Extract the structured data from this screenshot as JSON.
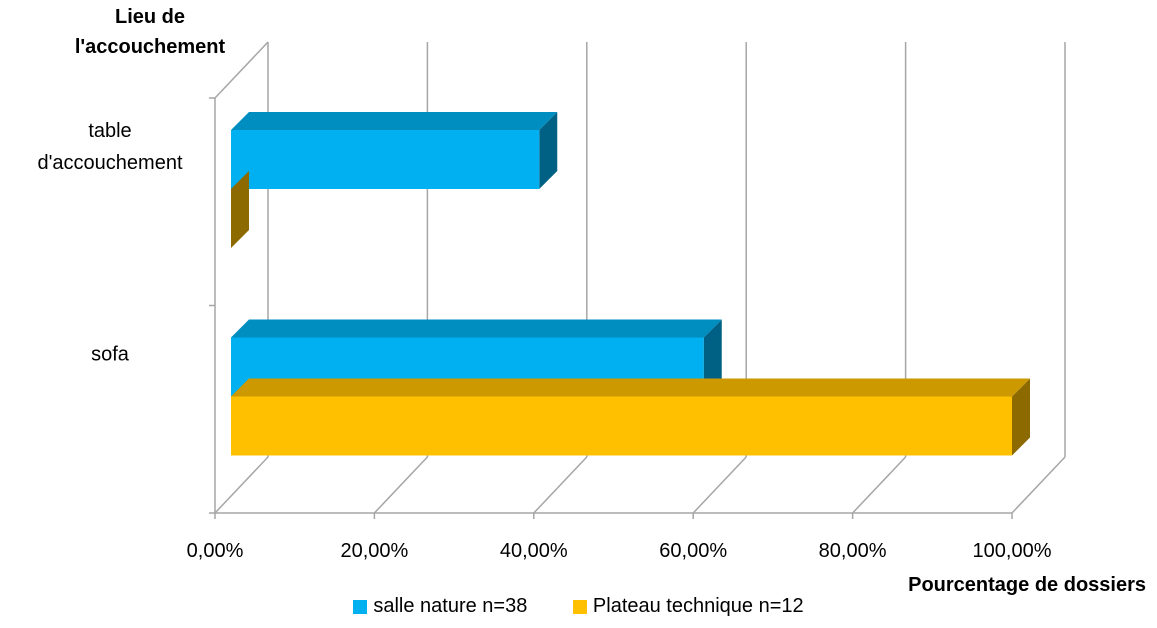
{
  "chart_data": {
    "type": "bar",
    "orientation": "horizontal",
    "style": "3d-clustered",
    "title": "",
    "ylabel": "Lieu de\nl'accouchement",
    "xlabel": "Pourcentage de dossiers",
    "categories": [
      "table d'accouchement",
      "sofa"
    ],
    "category_lines": [
      [
        "table",
        "d'accouchement"
      ],
      [
        "sofa"
      ]
    ],
    "series": [
      {
        "name": "salle nature n=38",
        "values": [
          39.47,
          60.53
        ],
        "color": "#00B0F0"
      },
      {
        "name": "Plateau technique n=12",
        "values": [
          0,
          100
        ],
        "color": "#FFC000"
      }
    ],
    "xlim": [
      0,
      100
    ],
    "xticks": [
      0,
      20,
      40,
      60,
      80,
      100
    ],
    "xtick_labels": [
      "0,00%",
      "20,00%",
      "40,00%",
      "60,00%",
      "80,00%",
      "100,00%"
    ],
    "grid": true,
    "legend_position": "bottom"
  }
}
